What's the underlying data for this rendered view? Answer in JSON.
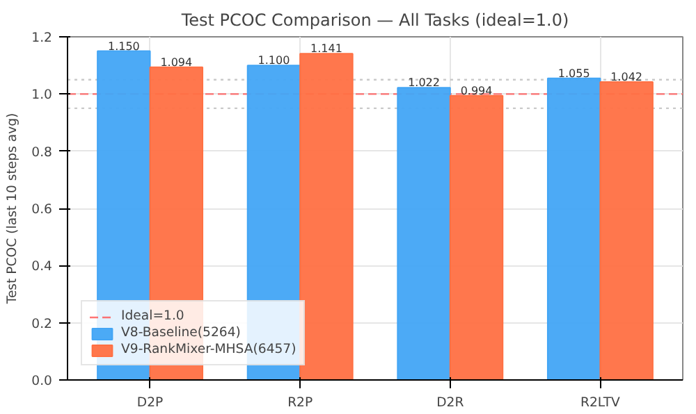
{
  "chart_data": {
    "type": "bar",
    "title": "Test PCOC Comparison — All Tasks (ideal=1.0)",
    "ylabel": "Test PCOC (last 10 steps avg)",
    "categories": [
      "D2P",
      "R2P",
      "D2R",
      "R2LTV"
    ],
    "series": [
      {
        "name": "V8-Baseline(5264)",
        "color": "#42a5f5",
        "values": [
          1.15,
          1.1,
          1.022,
          1.055
        ],
        "value_labels": [
          "1.150",
          "1.100",
          "1.022",
          "1.055"
        ]
      },
      {
        "name": "V9-RankMixer-MHSA(6457)",
        "color": "#ff7043",
        "values": [
          1.094,
          1.141,
          0.994,
          1.042
        ],
        "value_labels": [
          "1.094",
          "1.141",
          "0.994",
          "1.042"
        ]
      }
    ],
    "ylim": [
      0,
      1.2
    ],
    "yticks": [
      {
        "value": 0,
        "label": "0.0"
      },
      0.2,
      0.4,
      0.6,
      0.8,
      {
        "value": 1,
        "label": "1.0"
      },
      1.2
    ],
    "ref_lines": [
      {
        "axis": "y",
        "value": 1.0,
        "label": "Ideal=1.0",
        "color": "#ff5252",
        "line_style": "dashed"
      },
      {
        "axis": "y",
        "value": 0.95,
        "label": null,
        "color": "#bdbdbd",
        "line_style": "dotted"
      },
      {
        "axis": "y",
        "value": 1.05,
        "label": null,
        "color": "#bdbdbd",
        "line_style": "dotted"
      }
    ],
    "grid": true,
    "legend": "bottom left"
  }
}
